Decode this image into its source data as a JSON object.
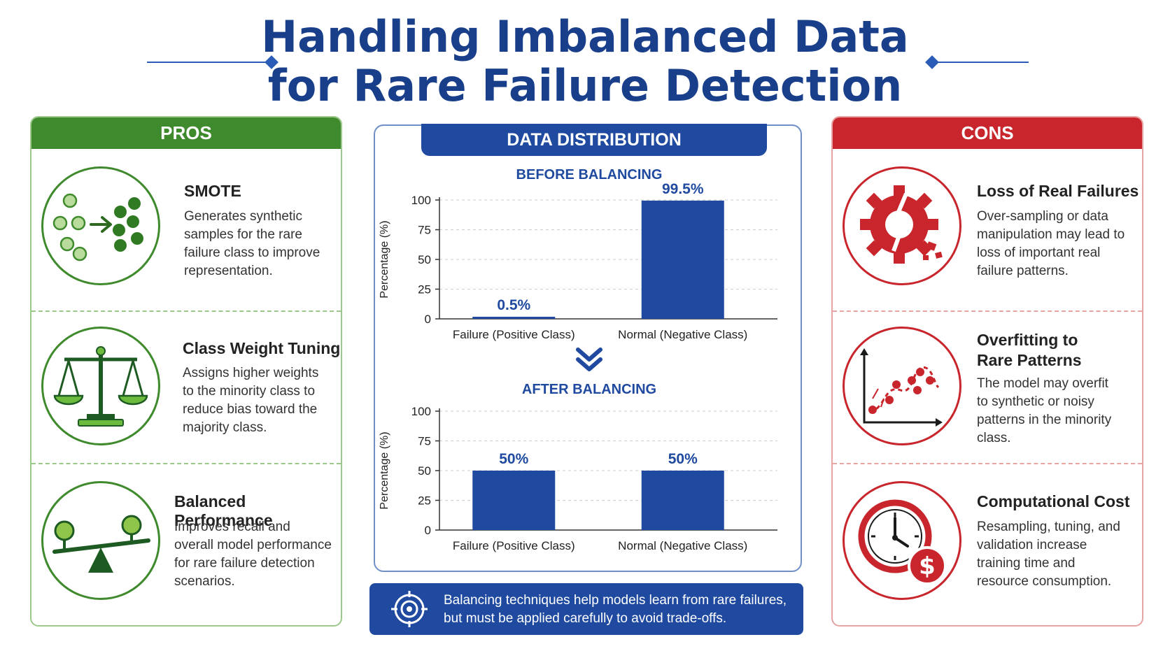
{
  "title": {
    "line1": "Handling Imbalanced Data",
    "line2": "for Rare Failure Detection"
  },
  "colors": {
    "title": "#1a3f8a",
    "pros": "#3f8a2c",
    "cons": "#c8262c",
    "bars": "#1f4aa0"
  },
  "pros": {
    "header": "PROS",
    "items": [
      {
        "icon": "smote-dots-icon",
        "title": "SMOTE",
        "text": [
          "Generates synthetic",
          "samples for the rare",
          "failure class to improve",
          "representation."
        ]
      },
      {
        "icon": "balance-scale-icon",
        "title": "Class Weight Tuning",
        "text": [
          "Assigns higher weights",
          "to the minority class to",
          "reduce bias toward the",
          "majority class."
        ]
      },
      {
        "icon": "seesaw-icon",
        "title": "Balanced Performance",
        "text": [
          "Improves recall and",
          "overall model performance",
          "for rare failure detection",
          "scenarios."
        ]
      }
    ]
  },
  "cons": {
    "header": "CONS",
    "items": [
      {
        "icon": "broken-gear-icon",
        "title": "Loss of Real Failures",
        "text": [
          "Over-sampling or data",
          "manipulation may lead to",
          "loss of important real",
          "failure patterns."
        ]
      },
      {
        "icon": "overfitting-curve-icon",
        "title_lines": [
          "Overfitting to",
          "Rare Patterns"
        ],
        "text": [
          "The model may overfit",
          "to synthetic or noisy",
          "patterns in the minority",
          "class."
        ]
      },
      {
        "icon": "clock-dollar-icon",
        "title": "Computational Cost",
        "text": [
          "Resampling, tuning, and",
          "validation increase",
          "training time and",
          "resource consumption."
        ]
      }
    ]
  },
  "center": {
    "header": "DATA DISTRIBUTION",
    "arrow_icon": "double-chevron-down-icon"
  },
  "chart_data": [
    {
      "type": "bar",
      "title": "BEFORE BALANCING",
      "categories": [
        "Failure (Positive Class)",
        "Normal (Negative Class)"
      ],
      "values": [
        0.5,
        99.5
      ],
      "data_labels": [
        "0.5%",
        "99.5%"
      ],
      "ylabel": "Percentage (%)",
      "ylim": [
        0,
        100
      ],
      "yticks": [
        0,
        25,
        50,
        75,
        100
      ],
      "grid": true
    },
    {
      "type": "bar",
      "title": "AFTER BALANCING",
      "categories": [
        "Failure (Positive Class)",
        "Normal (Negative Class)"
      ],
      "values": [
        50,
        50
      ],
      "data_labels": [
        "50%",
        "50%"
      ],
      "ylabel": "Percentage (%)",
      "ylim": [
        0,
        100
      ],
      "yticks": [
        0,
        25,
        50,
        75,
        100
      ],
      "grid": true
    }
  ],
  "note": {
    "icon": "target-icon",
    "lines": [
      "Balancing techniques help models learn from rare failures,",
      "but must be applied carefully to avoid trade-offs."
    ]
  }
}
